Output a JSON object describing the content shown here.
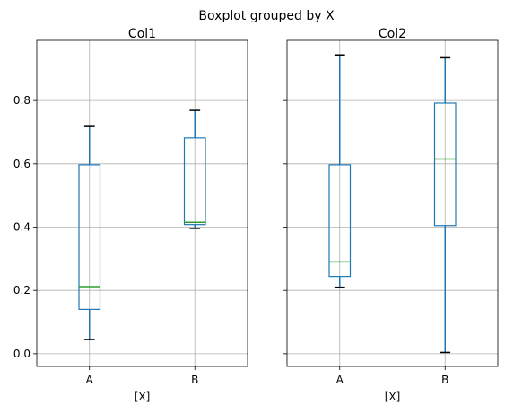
{
  "suptitle": "Boxplot grouped by X",
  "chart_data": [
    {
      "type": "box",
      "title": "Col1",
      "xlabel": "[X]",
      "ylabel": "",
      "categories": [
        "A",
        "B"
      ],
      "ylim": [
        -0.04,
        0.99
      ],
      "yticks": [
        0.0,
        0.2,
        0.4,
        0.6,
        0.8
      ],
      "ytick_labels": [
        "0.0",
        "0.2",
        "0.4",
        "0.6",
        "0.8"
      ],
      "grid": true,
      "boxes": [
        {
          "category": "A",
          "whisker_low": 0.045,
          "q1": 0.14,
          "median": 0.212,
          "q3": 0.597,
          "whisker_high": 0.718
        },
        {
          "category": "B",
          "whisker_low": 0.396,
          "q1": 0.408,
          "median": 0.415,
          "q3": 0.682,
          "whisker_high": 0.769
        }
      ]
    },
    {
      "type": "box",
      "title": "Col2",
      "xlabel": "[X]",
      "ylabel": "",
      "categories": [
        "A",
        "B"
      ],
      "ylim": [
        -0.04,
        0.99
      ],
      "yticks": [
        0.0,
        0.2,
        0.4,
        0.6,
        0.8
      ],
      "ytick_labels": [
        "",
        "",
        "",
        "",
        ""
      ],
      "sharey": true,
      "grid": true,
      "boxes": [
        {
          "category": "A",
          "whisker_low": 0.21,
          "q1": 0.244,
          "median": 0.29,
          "q3": 0.597,
          "whisker_high": 0.944
        },
        {
          "category": "B",
          "whisker_low": 0.004,
          "q1": 0.405,
          "median": 0.615,
          "q3": 0.792,
          "whisker_high": 0.935
        }
      ]
    }
  ],
  "colors": {
    "box": "#1f77b4",
    "median": "#2ca02c",
    "cap": "#000000",
    "grid": "#b0b0b0",
    "axes": "#000000"
  }
}
